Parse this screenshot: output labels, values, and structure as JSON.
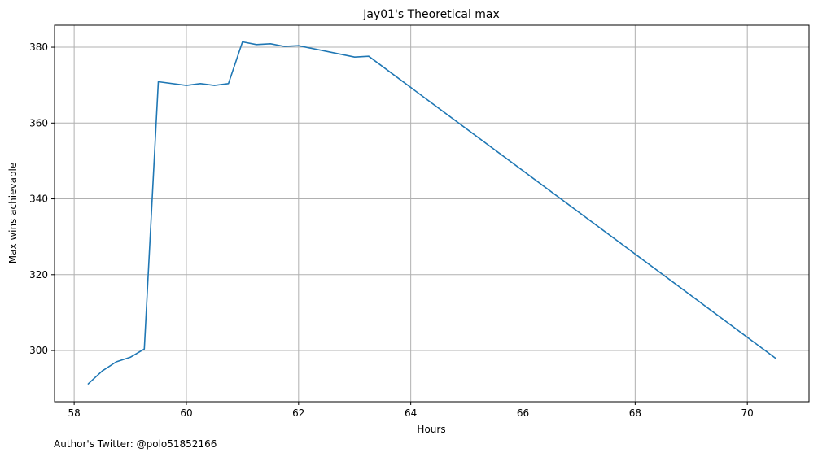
{
  "chart_data": {
    "type": "line",
    "title": "Jay01's Theoretical max",
    "xlabel": "Hours",
    "ylabel": "Max wins achievable",
    "xlim": [
      57.65,
      71.1
    ],
    "ylim": [
      286.5,
      385.8
    ],
    "xticks": [
      58,
      60,
      62,
      64,
      66,
      68,
      70
    ],
    "yticks": [
      300,
      320,
      340,
      360,
      380
    ],
    "grid": true,
    "series": [
      {
        "color": "#1f77b4",
        "x": [
          58.25,
          58.5,
          58.75,
          59.0,
          59.25,
          59.5,
          60.0,
          60.25,
          60.5,
          60.75,
          61.0,
          61.25,
          61.5,
          61.75,
          62.0,
          63.0,
          63.25,
          70.5
        ],
        "y": [
          291.2,
          294.6,
          297.0,
          298.2,
          300.4,
          370.9,
          369.9,
          370.4,
          369.9,
          370.4,
          381.4,
          380.7,
          380.9,
          380.2,
          380.4,
          377.4,
          377.6,
          298.0
        ]
      }
    ]
  },
  "footer": {
    "text": "Author's Twitter: @polo51852166"
  }
}
